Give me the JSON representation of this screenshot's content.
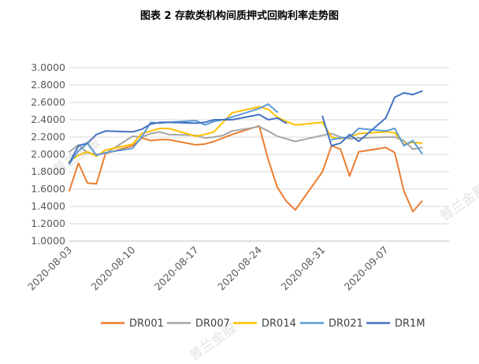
{
  "chart_data": {
    "type": "line",
    "title": "图表 2 存款类机构间质押式回购利率走势图",
    "xlabel": "",
    "ylabel": "",
    "ylim": [
      1.0,
      3.0
    ],
    "yticks": [
      "1.0000",
      "1.2000",
      "1.4000",
      "1.6000",
      "1.8000",
      "2.0000",
      "2.2000",
      "2.4000",
      "2.6000",
      "2.8000",
      "3.0000"
    ],
    "xlim": [
      "2020-08-03",
      "2020-09-14"
    ],
    "xticks": [
      "2020-08-03",
      "2020-08-10",
      "2020-08-17",
      "2020-08-24",
      "2020-08-31",
      "2020-09-07"
    ],
    "grid": true,
    "legend": "bottom",
    "series": [
      {
        "name": "DR001",
        "color": "#ED7D31",
        "points": [
          [
            "2020-08-03",
            1.58
          ],
          [
            "2020-08-04",
            1.9
          ],
          [
            "2020-08-05",
            1.67
          ],
          [
            "2020-08-06",
            1.66
          ],
          [
            "2020-08-07",
            2.01
          ],
          [
            "2020-08-10",
            2.1
          ],
          [
            "2020-08-11",
            2.19
          ],
          [
            "2020-08-12",
            2.16
          ],
          [
            "2020-08-13",
            2.17
          ],
          [
            "2020-08-14",
            2.17
          ],
          [
            "2020-08-17",
            2.11
          ],
          [
            "2020-08-18",
            2.12
          ],
          [
            "2020-08-19",
            2.15
          ],
          [
            "2020-08-20",
            2.19
          ],
          [
            "2020-08-21",
            2.23
          ],
          [
            "2020-08-24",
            2.33
          ],
          [
            "2020-08-25",
            1.94
          ],
          [
            "2020-08-26",
            1.62
          ],
          [
            "2020-08-27",
            1.46
          ],
          [
            "2020-08-28",
            1.36
          ],
          [
            "2020-08-31",
            1.8
          ],
          [
            "2020-09-01",
            2.1
          ],
          [
            "2020-09-02",
            2.06
          ],
          [
            "2020-09-03",
            1.75
          ],
          [
            "2020-09-04",
            2.03
          ],
          [
            "2020-09-07",
            2.08
          ],
          [
            "2020-09-08",
            2.02
          ],
          [
            "2020-09-09",
            1.58
          ],
          [
            "2020-09-10",
            1.34
          ],
          [
            "2020-09-11",
            1.46
          ]
        ]
      },
      {
        "name": "DR007",
        "color": "#A5A5A5",
        "points": [
          [
            "2020-08-03",
            2.03
          ],
          [
            "2020-08-04",
            2.11
          ],
          [
            "2020-08-05",
            2.02
          ],
          [
            "2020-08-06",
            2.0
          ],
          [
            "2020-08-07",
            2.01
          ],
          [
            "2020-08-10",
            2.21
          ],
          [
            "2020-08-11",
            2.2
          ],
          [
            "2020-08-12",
            2.24
          ],
          [
            "2020-08-13",
            2.26
          ],
          [
            "2020-08-14",
            2.23
          ],
          [
            "2020-08-17",
            2.22
          ],
          [
            "2020-08-18",
            2.19
          ],
          [
            "2020-08-19",
            2.2
          ],
          [
            "2020-08-20",
            2.22
          ],
          [
            "2020-08-21",
            2.27
          ],
          [
            "2020-08-24",
            2.32
          ],
          [
            "2020-08-25",
            2.27
          ],
          [
            "2020-08-26",
            2.21
          ],
          [
            "2020-08-27",
            2.18
          ],
          [
            "2020-08-28",
            2.15
          ],
          [
            "2020-08-31",
            2.22
          ],
          [
            "2020-09-01",
            2.24
          ],
          [
            "2020-09-02",
            2.2
          ],
          [
            "2020-09-03",
            2.18
          ],
          [
            "2020-09-04",
            2.19
          ],
          [
            "2020-09-07",
            2.2
          ],
          [
            "2020-09-08",
            2.2
          ],
          [
            "2020-09-09",
            2.16
          ],
          [
            "2020-09-10",
            2.06
          ],
          [
            "2020-09-11",
            2.08
          ]
        ]
      },
      {
        "name": "DR014",
        "color": "#FFC000",
        "points": [
          [
            "2020-08-03",
            1.92
          ],
          [
            "2020-08-04",
            1.99
          ],
          [
            "2020-08-05",
            2.03
          ],
          [
            "2020-08-06",
            1.98
          ],
          [
            "2020-08-07",
            2.05
          ],
          [
            "2020-08-10",
            2.12
          ],
          [
            "2020-08-11",
            2.24
          ],
          [
            "2020-08-12",
            2.27
          ],
          [
            "2020-08-13",
            2.3
          ],
          [
            "2020-08-14",
            2.3
          ],
          [
            "2020-08-17",
            2.21
          ],
          [
            "2020-08-18",
            2.23
          ],
          [
            "2020-08-19",
            2.26
          ],
          [
            "2020-08-20",
            2.37
          ],
          [
            "2020-08-21",
            2.48
          ],
          [
            "2020-08-24",
            2.55
          ],
          [
            "2020-08-25",
            2.52
          ],
          [
            "2020-08-26",
            2.43
          ],
          [
            "2020-08-27",
            2.38
          ],
          [
            "2020-08-28",
            2.34
          ],
          [
            "2020-08-31",
            2.37
          ],
          [
            "2020-09-01",
            2.2
          ],
          [
            "2020-09-02",
            2.18
          ],
          [
            "2020-09-03",
            2.2
          ],
          [
            "2020-09-04",
            2.24
          ],
          [
            "2020-09-07",
            2.26
          ],
          [
            "2020-09-08",
            2.25
          ],
          [
            "2020-09-09",
            2.12
          ],
          [
            "2020-09-10",
            2.14
          ],
          [
            "2020-09-11",
            2.13
          ]
        ]
      },
      {
        "name": "DR021",
        "color": "#5B9BD5",
        "points": [
          [
            "2020-08-03",
            1.89
          ],
          [
            "2020-08-04",
            2.04
          ],
          [
            "2020-08-05",
            2.13
          ],
          [
            "2020-08-06",
            1.99
          ],
          [
            "2020-08-07",
            2.02
          ],
          [
            "2020-08-10",
            2.07
          ],
          [
            "2020-08-11",
            2.2
          ],
          [
            "2020-08-12",
            2.37
          ],
          [
            "2020-08-13",
            2.36
          ],
          [
            "2020-08-14",
            2.37
          ],
          [
            "2020-08-17",
            2.39
          ],
          [
            "2020-08-18",
            2.34
          ],
          [
            "2020-08-19",
            2.38
          ],
          [
            "2020-08-20",
            2.4
          ],
          [
            "2020-08-21",
            2.43
          ],
          [
            "2020-08-24",
            2.53
          ],
          [
            "2020-08-25",
            2.58
          ],
          [
            "2020-08-26",
            2.49
          ],
          [
            "2020-09-01",
            2.17
          ],
          [
            "2020-09-02",
            2.19
          ],
          [
            "2020-09-03",
            2.2
          ],
          [
            "2020-09-04",
            2.3
          ],
          [
            "2020-09-07",
            2.27
          ],
          [
            "2020-09-08",
            2.3
          ],
          [
            "2020-09-09",
            2.1
          ],
          [
            "2020-09-10",
            2.16
          ],
          [
            "2020-09-11",
            2.01
          ]
        ]
      },
      {
        "name": "DR1M",
        "color": "#4472C4",
        "points": [
          [
            "2020-08-03",
            1.9
          ],
          [
            "2020-08-04",
            2.1
          ],
          [
            "2020-08-05",
            2.13
          ],
          [
            "2020-08-06",
            2.23
          ],
          [
            "2020-08-07",
            2.27
          ],
          [
            "2020-08-10",
            2.26
          ],
          [
            "2020-08-11",
            2.29
          ],
          [
            "2020-08-12",
            2.35
          ],
          [
            "2020-08-13",
            2.37
          ],
          [
            "2020-08-14",
            2.37
          ],
          [
            "2020-08-17",
            2.36
          ],
          [
            "2020-08-18",
            2.37
          ],
          [
            "2020-08-19",
            2.4
          ],
          [
            "2020-08-20",
            2.4
          ],
          [
            "2020-08-21",
            2.4
          ],
          [
            "2020-08-24",
            2.46
          ],
          [
            "2020-08-25",
            2.4
          ],
          [
            "2020-08-26",
            2.42
          ],
          [
            "2020-08-27",
            2.36
          ],
          [
            "2020-08-31",
            2.44
          ],
          [
            "2020-09-01",
            2.1
          ],
          [
            "2020-09-02",
            2.13
          ],
          [
            "2020-09-03",
            2.23
          ],
          [
            "2020-09-04",
            2.15
          ],
          [
            "2020-09-07",
            2.42
          ],
          [
            "2020-09-08",
            2.66
          ],
          [
            "2020-09-09",
            2.71
          ],
          [
            "2020-09-10",
            2.69
          ],
          [
            "2020-09-11",
            2.73
          ]
        ]
      }
    ]
  },
  "watermark": "普兰金服"
}
